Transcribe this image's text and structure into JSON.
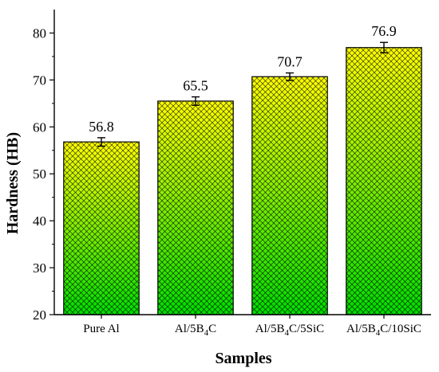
{
  "chart_data": {
    "type": "bar",
    "xlabel": "Samples",
    "ylabel": "Hardness (HB)",
    "categories": [
      "Pure Al",
      "Al/5B4C",
      "Al/5B4C/5SiC",
      "Al/5B4C/10SiC"
    ],
    "values": [
      56.8,
      65.5,
      70.7,
      76.9
    ],
    "value_labels": [
      "56.8",
      "65.5",
      "70.7",
      "76.9"
    ],
    "errors": [
      0.9,
      0.9,
      0.8,
      1.1
    ],
    "ylim": [
      20,
      85
    ],
    "yticks": [
      20,
      30,
      40,
      50,
      60,
      70,
      80
    ],
    "grid": false,
    "fill": {
      "top_color": "#ffff00",
      "bottom_color": "#00dd00",
      "pattern": "crosshatch"
    }
  }
}
